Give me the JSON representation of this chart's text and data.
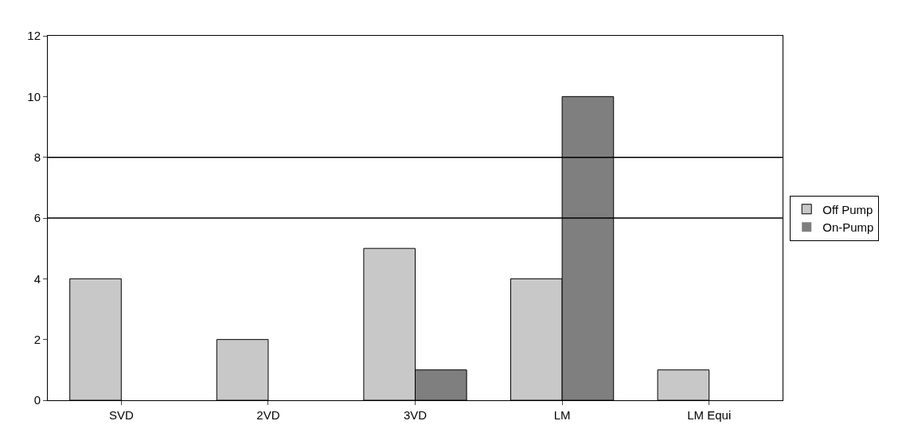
{
  "chart_data": {
    "type": "bar",
    "categories": [
      "SVD",
      "2VD",
      "3VD",
      "LM",
      "LM Equi"
    ],
    "series": [
      {
        "name": "Off Pump",
        "color": "#c8c8c8",
        "values": [
          4,
          2,
          5,
          4,
          1
        ]
      },
      {
        "name": "On-Pump",
        "color": "#7f7f7f",
        "values": [
          0,
          0,
          1,
          10,
          0
        ]
      }
    ],
    "ylim": [
      0,
      12
    ],
    "yticks": [
      0,
      2,
      4,
      6,
      8,
      10,
      12
    ],
    "ref_lines": [
      {
        "axis": "y",
        "value": 6,
        "color": "#000000"
      },
      {
        "axis": "y",
        "value": 8,
        "color": "#000000"
      }
    ],
    "grid": false,
    "legend": "right"
  }
}
